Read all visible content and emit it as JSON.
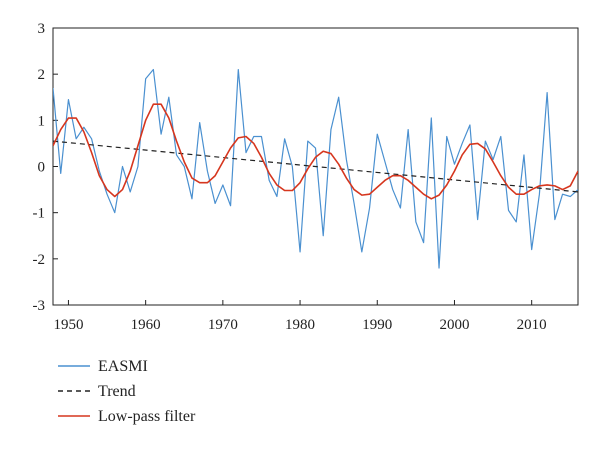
{
  "chart_data": {
    "type": "line",
    "title": "",
    "xlabel": "",
    "ylabel": "",
    "xlim": [
      1948,
      2016
    ],
    "ylim": [
      -3,
      3
    ],
    "x_ticks": [
      1950,
      1960,
      1970,
      1980,
      1990,
      2000,
      2010
    ],
    "y_ticks": [
      -3,
      -2,
      -1,
      0,
      1,
      2,
      3
    ],
    "grid": false,
    "legend_position": "bottom-left",
    "series": [
      {
        "name": "EASMI",
        "color": "#4a90d0",
        "style": "solid",
        "x": [
          1948,
          1949,
          1950,
          1951,
          1952,
          1953,
          1954,
          1955,
          1956,
          1957,
          1958,
          1959,
          1960,
          1961,
          1962,
          1963,
          1964,
          1965,
          1966,
          1967,
          1968,
          1969,
          1970,
          1971,
          1972,
          1973,
          1974,
          1975,
          1976,
          1977,
          1978,
          1979,
          1980,
          1981,
          1982,
          1983,
          1984,
          1985,
          1986,
          1987,
          1988,
          1989,
          1990,
          1991,
          1992,
          1993,
          1994,
          1995,
          1996,
          1997,
          1998,
          1999,
          2000,
          2001,
          2002,
          2003,
          2004,
          2005,
          2006,
          2007,
          2008,
          2009,
          2010,
          2011,
          2012,
          2013,
          2014,
          2015,
          2016
        ],
        "y": [
          1.7,
          -0.15,
          1.45,
          0.6,
          0.85,
          0.6,
          -0.1,
          -0.6,
          -1.0,
          0.0,
          -0.55,
          0.0,
          1.9,
          2.1,
          0.7,
          1.5,
          0.25,
          0.0,
          -0.7,
          0.95,
          -0.1,
          -0.8,
          -0.4,
          -0.85,
          2.1,
          0.3,
          0.65,
          0.65,
          -0.3,
          -0.65,
          0.6,
          0.0,
          -1.85,
          0.55,
          0.4,
          -1.5,
          0.8,
          1.5,
          0.15,
          -0.8,
          -1.85,
          -0.9,
          0.7,
          0.1,
          -0.5,
          -0.9,
          0.8,
          -1.2,
          -1.65,
          1.05,
          -2.2,
          0.65,
          0.05,
          0.5,
          0.9,
          -1.15,
          0.55,
          0.15,
          0.65,
          -0.95,
          -1.2,
          0.25,
          -1.8,
          -0.6,
          1.6,
          -1.15,
          -0.6,
          -0.65,
          -0.5
        ]
      },
      {
        "name": "Trend",
        "color": "#222222",
        "style": "dashed",
        "x": [
          1948,
          2016
        ],
        "y": [
          0.55,
          -0.55
        ]
      },
      {
        "name": "Low-pass filter",
        "color": "#d6361e",
        "style": "solid",
        "x": [
          1948,
          1949,
          1950,
          1951,
          1952,
          1953,
          1954,
          1955,
          1956,
          1957,
          1958,
          1959,
          1960,
          1961,
          1962,
          1963,
          1964,
          1965,
          1966,
          1967,
          1968,
          1969,
          1970,
          1971,
          1972,
          1973,
          1974,
          1975,
          1976,
          1977,
          1978,
          1979,
          1980,
          1981,
          1982,
          1983,
          1984,
          1985,
          1986,
          1987,
          1988,
          1989,
          1990,
          1991,
          1992,
          1993,
          1994,
          1995,
          1996,
          1997,
          1998,
          1999,
          2000,
          2001,
          2002,
          2003,
          2004,
          2005,
          2006,
          2007,
          2008,
          2009,
          2010,
          2011,
          2012,
          2013,
          2014,
          2015,
          2016
        ],
        "y": [
          0.45,
          0.8,
          1.05,
          1.05,
          0.75,
          0.3,
          -0.2,
          -0.5,
          -0.65,
          -0.5,
          -0.1,
          0.45,
          1.0,
          1.35,
          1.35,
          1.05,
          0.55,
          0.1,
          -0.25,
          -0.35,
          -0.35,
          -0.2,
          0.1,
          0.4,
          0.62,
          0.65,
          0.5,
          0.2,
          -0.15,
          -0.4,
          -0.52,
          -0.52,
          -0.35,
          -0.05,
          0.2,
          0.33,
          0.28,
          0.05,
          -0.25,
          -0.5,
          -0.62,
          -0.6,
          -0.45,
          -0.3,
          -0.2,
          -0.2,
          -0.3,
          -0.45,
          -0.6,
          -0.7,
          -0.62,
          -0.4,
          -0.1,
          0.25,
          0.48,
          0.5,
          0.38,
          0.1,
          -0.2,
          -0.45,
          -0.6,
          -0.6,
          -0.5,
          -0.42,
          -0.4,
          -0.42,
          -0.5,
          -0.42,
          -0.1
        ]
      }
    ]
  }
}
